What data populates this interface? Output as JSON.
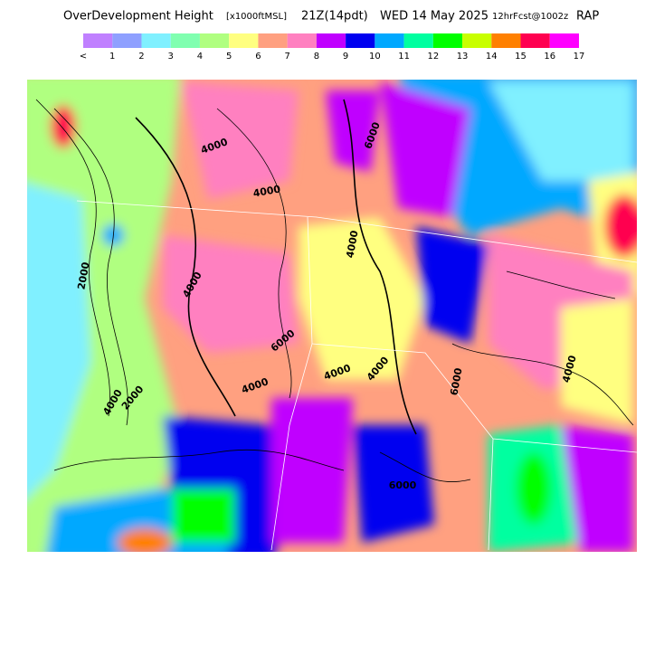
{
  "header": {
    "title": "OverDevelopment Height",
    "units": "[x1000ftMSL]",
    "time": "21Z(14pdt)",
    "date": "WED 14 May 2025",
    "forecast": "12hrFcst@1002z",
    "model": "RAP"
  },
  "legend": {
    "colors": [
      "#c080ff",
      "#8fa0ff",
      "#80f0ff",
      "#80ffb0",
      "#b0ff80",
      "#ffff80",
      "#ffa080",
      "#ff80c0",
      "#c000ff",
      "#0000f0",
      "#00a8ff",
      "#00ffa0",
      "#00ff00",
      "#c8ff00",
      "#ff8000",
      "#ff0050",
      "#ff00ff"
    ],
    "labels": [
      "<",
      "1",
      "2",
      "3",
      "4",
      "5",
      "6",
      "7",
      "8",
      "9",
      "10",
      "11",
      "12",
      "13",
      "14",
      "15",
      "16",
      "17"
    ]
  },
  "map": {
    "contour_labels": [
      "4000",
      "4000",
      "6000",
      "4000",
      "2000",
      "4000",
      "4000",
      "4000",
      "6000",
      "4000",
      "6000",
      "4000",
      "2000",
      "6000",
      "4000"
    ]
  }
}
